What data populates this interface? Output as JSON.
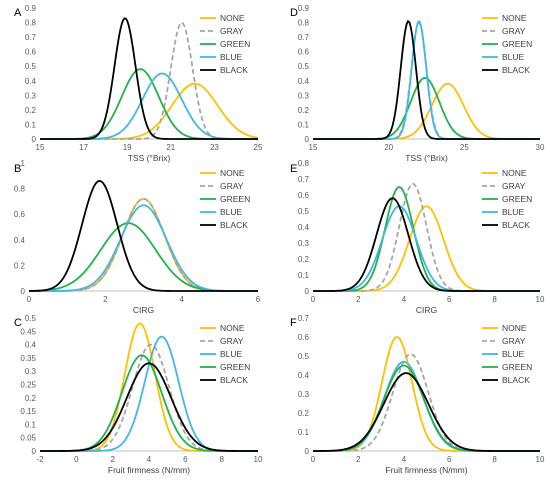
{
  "chart_data": [
    {
      "type": "line",
      "letter": "A",
      "xlabel": "TSS (°Brix)",
      "xlim": [
        15,
        25
      ],
      "ylim": [
        0,
        0.9
      ],
      "xticks": [
        15,
        17,
        19,
        21,
        23,
        25
      ],
      "yticks": [
        0,
        0.1,
        0.2,
        0.3,
        0.4,
        0.5,
        0.6,
        0.7,
        0.8,
        0.9
      ],
      "legend": "top-right",
      "series": [
        {
          "name": "NONE",
          "color": "#FFC000",
          "dash": false,
          "mean": 22.1,
          "sd": 1.05,
          "peak": 0.38
        },
        {
          "name": "GRAY",
          "color": "#A6A6A6",
          "dash": true,
          "mean": 21.5,
          "sd": 0.5,
          "peak": 0.8
        },
        {
          "name": "GREEN",
          "color": "#22B14C",
          "dash": false,
          "mean": 19.6,
          "sd": 0.85,
          "peak": 0.48
        },
        {
          "name": "BLUE",
          "color": "#3FB8E3",
          "dash": false,
          "mean": 20.6,
          "sd": 0.9,
          "peak": 0.45
        },
        {
          "name": "BLACK",
          "color": "#000000",
          "dash": false,
          "mean": 18.9,
          "sd": 0.48,
          "peak": 0.83
        }
      ]
    },
    {
      "type": "line",
      "letter": "D",
      "xlabel": "TSS (°Brix)",
      "xlim": [
        15,
        30
      ],
      "ylim": [
        0,
        0.9
      ],
      "xticks": [
        15,
        20,
        25,
        30
      ],
      "yticks": [
        0,
        0.1,
        0.2,
        0.3,
        0.4,
        0.5,
        0.6,
        0.7,
        0.8,
        0.9
      ],
      "legend": "top-right",
      "series": [
        {
          "name": "NONE",
          "color": "#FFC000",
          "dash": false,
          "mean": 23.9,
          "sd": 1.05,
          "peak": 0.38
        },
        {
          "name": "GRAY",
          "color": "#A6A6A6",
          "dash": true,
          "mean": 22.0,
          "sd": 0.5,
          "peak": 0.8
        },
        {
          "name": "GREEN",
          "color": "#22B14C",
          "dash": false,
          "mean": 22.4,
          "sd": 0.95,
          "peak": 0.42
        },
        {
          "name": "BLUE",
          "color": "#3FB8E3",
          "dash": false,
          "mean": 22.0,
          "sd": 0.48,
          "peak": 0.81
        },
        {
          "name": "BLACK",
          "color": "#000000",
          "dash": false,
          "mean": 21.3,
          "sd": 0.5,
          "peak": 0.81
        }
      ]
    },
    {
      "type": "line",
      "letter": "B",
      "xlabel": "CIRG",
      "xlim": [
        0,
        6
      ],
      "ylim": [
        0,
        1
      ],
      "xticks": [
        0,
        2,
        4,
        6
      ],
      "yticks": [
        0,
        0.2,
        0.4,
        0.6,
        0.8,
        1
      ],
      "legend": "top-right",
      "series": [
        {
          "name": "NONE",
          "color": "#FFC000",
          "dash": false,
          "mean": 3.0,
          "sd": 0.55,
          "peak": 0.72
        },
        {
          "name": "GRAY",
          "color": "#A6A6A6",
          "dash": true,
          "mean": 3.0,
          "sd": 0.55,
          "peak": 0.72
        },
        {
          "name": "GREEN",
          "color": "#22B14C",
          "dash": false,
          "mean": 2.6,
          "sd": 0.72,
          "peak": 0.53
        },
        {
          "name": "BLUE",
          "color": "#3FB8E3",
          "dash": false,
          "mean": 3.0,
          "sd": 0.6,
          "peak": 0.67
        },
        {
          "name": "BLACK",
          "color": "#000000",
          "dash": false,
          "mean": 1.85,
          "sd": 0.46,
          "peak": 0.86
        }
      ]
    },
    {
      "type": "line",
      "letter": "E",
      "xlabel": "CIRG",
      "xlim": [
        0,
        10
      ],
      "ylim": [
        0,
        0.8
      ],
      "xticks": [
        0,
        2,
        4,
        6,
        8,
        10
      ],
      "yticks": [
        0,
        0.1,
        0.2,
        0.3,
        0.4,
        0.5,
        0.6,
        0.7,
        0.8
      ],
      "legend": "top-right",
      "series": [
        {
          "name": "NONE",
          "color": "#FFC000",
          "dash": false,
          "mean": 5.0,
          "sd": 0.75,
          "peak": 0.53
        },
        {
          "name": "GRAY",
          "color": "#A6A6A6",
          "dash": true,
          "mean": 4.4,
          "sd": 0.6,
          "peak": 0.67
        },
        {
          "name": "GREEN",
          "color": "#22B14C",
          "dash": false,
          "mean": 3.8,
          "sd": 0.62,
          "peak": 0.65
        },
        {
          "name": "BLUE",
          "color": "#3FB8E3",
          "dash": false,
          "mean": 3.8,
          "sd": 0.75,
          "peak": 0.53
        },
        {
          "name": "BLACK",
          "color": "#000000",
          "dash": false,
          "mean": 3.5,
          "sd": 0.7,
          "peak": 0.58
        }
      ]
    },
    {
      "type": "line",
      "letter": "C",
      "xlabel": "Fruit firmness (N/mm)",
      "xlim": [
        -2,
        10
      ],
      "ylim": [
        0,
        0.5
      ],
      "xticks": [
        -2,
        0,
        2,
        4,
        6,
        8,
        10
      ],
      "yticks": [
        0,
        0.05,
        0.1,
        0.15,
        0.2,
        0.25,
        0.3,
        0.35,
        0.4,
        0.45,
        0.5
      ],
      "legend": "top-right",
      "series": [
        {
          "name": "NONE",
          "color": "#FFC000",
          "dash": false,
          "mean": 3.5,
          "sd": 0.83,
          "peak": 0.48
        },
        {
          "name": "GRAY",
          "color": "#A6A6A6",
          "dash": true,
          "mean": 4.1,
          "sd": 1.0,
          "peak": 0.4
        },
        {
          "name": "BLUE",
          "color": "#3FB8E3",
          "dash": false,
          "mean": 4.7,
          "sd": 0.93,
          "peak": 0.43
        },
        {
          "name": "GREEN",
          "color": "#22B14C",
          "dash": false,
          "mean": 3.6,
          "sd": 1.1,
          "peak": 0.36
        },
        {
          "name": "BLACK",
          "color": "#000000",
          "dash": false,
          "mean": 4.0,
          "sd": 1.22,
          "peak": 0.33
        }
      ]
    },
    {
      "type": "line",
      "letter": "F",
      "xlabel": "Fruit firmness (N/mm)",
      "xlim": [
        0,
        10
      ],
      "ylim": [
        0,
        0.7
      ],
      "xticks": [
        0,
        2,
        4,
        6,
        8,
        10
      ],
      "yticks": [
        0,
        0.1,
        0.2,
        0.3,
        0.4,
        0.5,
        0.6,
        0.7
      ],
      "legend": "top-right",
      "series": [
        {
          "name": "NONE",
          "color": "#FFC000",
          "dash": false,
          "mean": 3.7,
          "sd": 0.66,
          "peak": 0.6
        },
        {
          "name": "GRAY",
          "color": "#A6A6A6",
          "dash": true,
          "mean": 4.3,
          "sd": 0.78,
          "peak": 0.51
        },
        {
          "name": "BLUE",
          "color": "#3FB8E3",
          "dash": false,
          "mean": 4.0,
          "sd": 0.85,
          "peak": 0.47
        },
        {
          "name": "GREEN",
          "color": "#22B14C",
          "dash": false,
          "mean": 4.0,
          "sd": 0.88,
          "peak": 0.45
        },
        {
          "name": "BLACK",
          "color": "#000000",
          "dash": false,
          "mean": 4.1,
          "sd": 0.98,
          "peak": 0.41
        }
      ]
    }
  ]
}
